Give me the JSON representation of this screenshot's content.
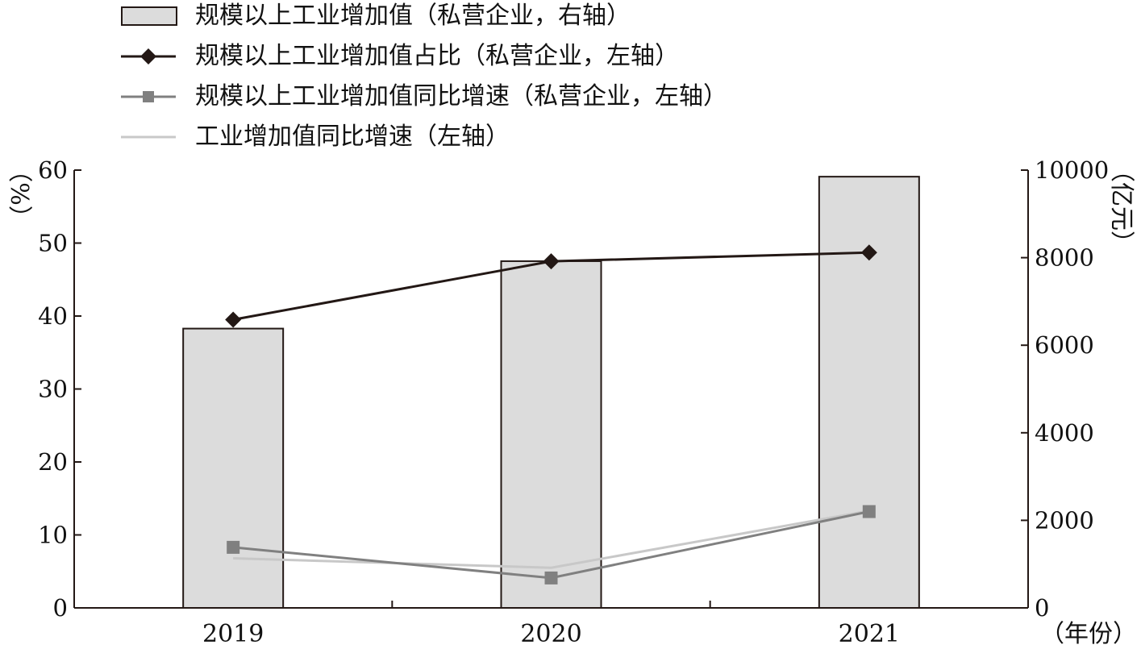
{
  "chart_data": {
    "type": "bar",
    "categories": [
      "2019",
      "2020",
      "2021"
    ],
    "x_unit": "（年份）",
    "left_axis": {
      "unit": "%",
      "ylim": [
        0,
        60
      ],
      "ticks": [
        0,
        10,
        20,
        30,
        40,
        50,
        60
      ]
    },
    "right_axis": {
      "unit": "亿元",
      "ylim": [
        0,
        10000
      ],
      "ticks": [
        0,
        2000,
        4000,
        6000,
        8000,
        10000
      ]
    },
    "legend_position": "top-left",
    "grid": false,
    "series": [
      {
        "name": "规模以上工业增加值（私营企业，右轴）",
        "type": "bar",
        "axis": "right",
        "color": "#dcdcdc",
        "values": [
          6380,
          7920,
          9850
        ]
      },
      {
        "name": "规模以上工业增加值占比（私营企业，左轴）",
        "type": "line",
        "axis": "left",
        "color": "#231815",
        "marker": "diamond",
        "values": [
          39.5,
          47.5,
          48.7
        ]
      },
      {
        "name": "规模以上工业增加值同比增速（私营企业，左轴）",
        "type": "line",
        "axis": "left",
        "color": "#808080",
        "marker": "square",
        "values": [
          8.3,
          4.1,
          13.2
        ]
      },
      {
        "name": "工业增加值同比增速（左轴）",
        "type": "line",
        "axis": "left",
        "color": "#c8c8c8",
        "marker": "none",
        "values": [
          6.8,
          5.5,
          13.3
        ]
      }
    ]
  }
}
